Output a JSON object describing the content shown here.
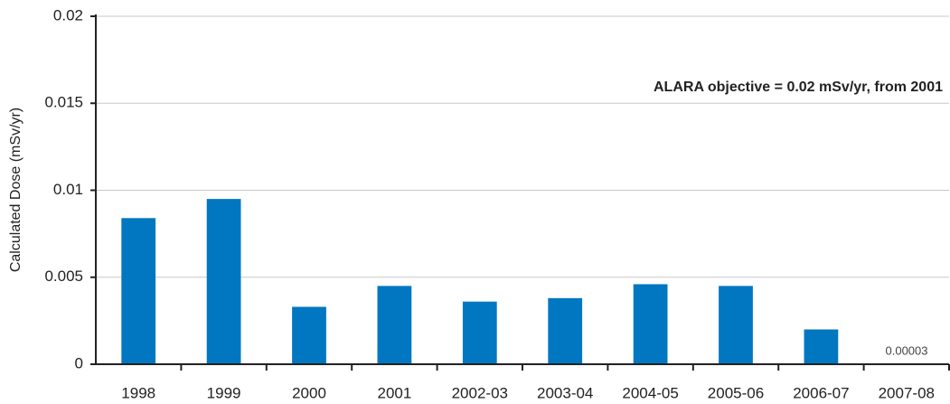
{
  "chart_data": {
    "type": "bar",
    "y_label": "Calculated Dose (mSv/yr)",
    "annotation": "ALARA objective = 0.02 mSv/yr, from 2001",
    "categories": [
      "1998",
      "1999",
      "2000",
      "2001",
      "2002-03",
      "2003-04",
      "2004-05",
      "2005-06",
      "2006-07",
      "2007-08"
    ],
    "values": [
      0.0084,
      0.0095,
      0.0033,
      0.0045,
      0.0036,
      0.0038,
      0.0046,
      0.0045,
      0.002,
      3e-05
    ],
    "color": "#0077c0",
    "ylim": [
      0,
      0.02
    ],
    "yticks": [
      0,
      0.005,
      0.01,
      0.015,
      0.02
    ],
    "grid": true
  }
}
